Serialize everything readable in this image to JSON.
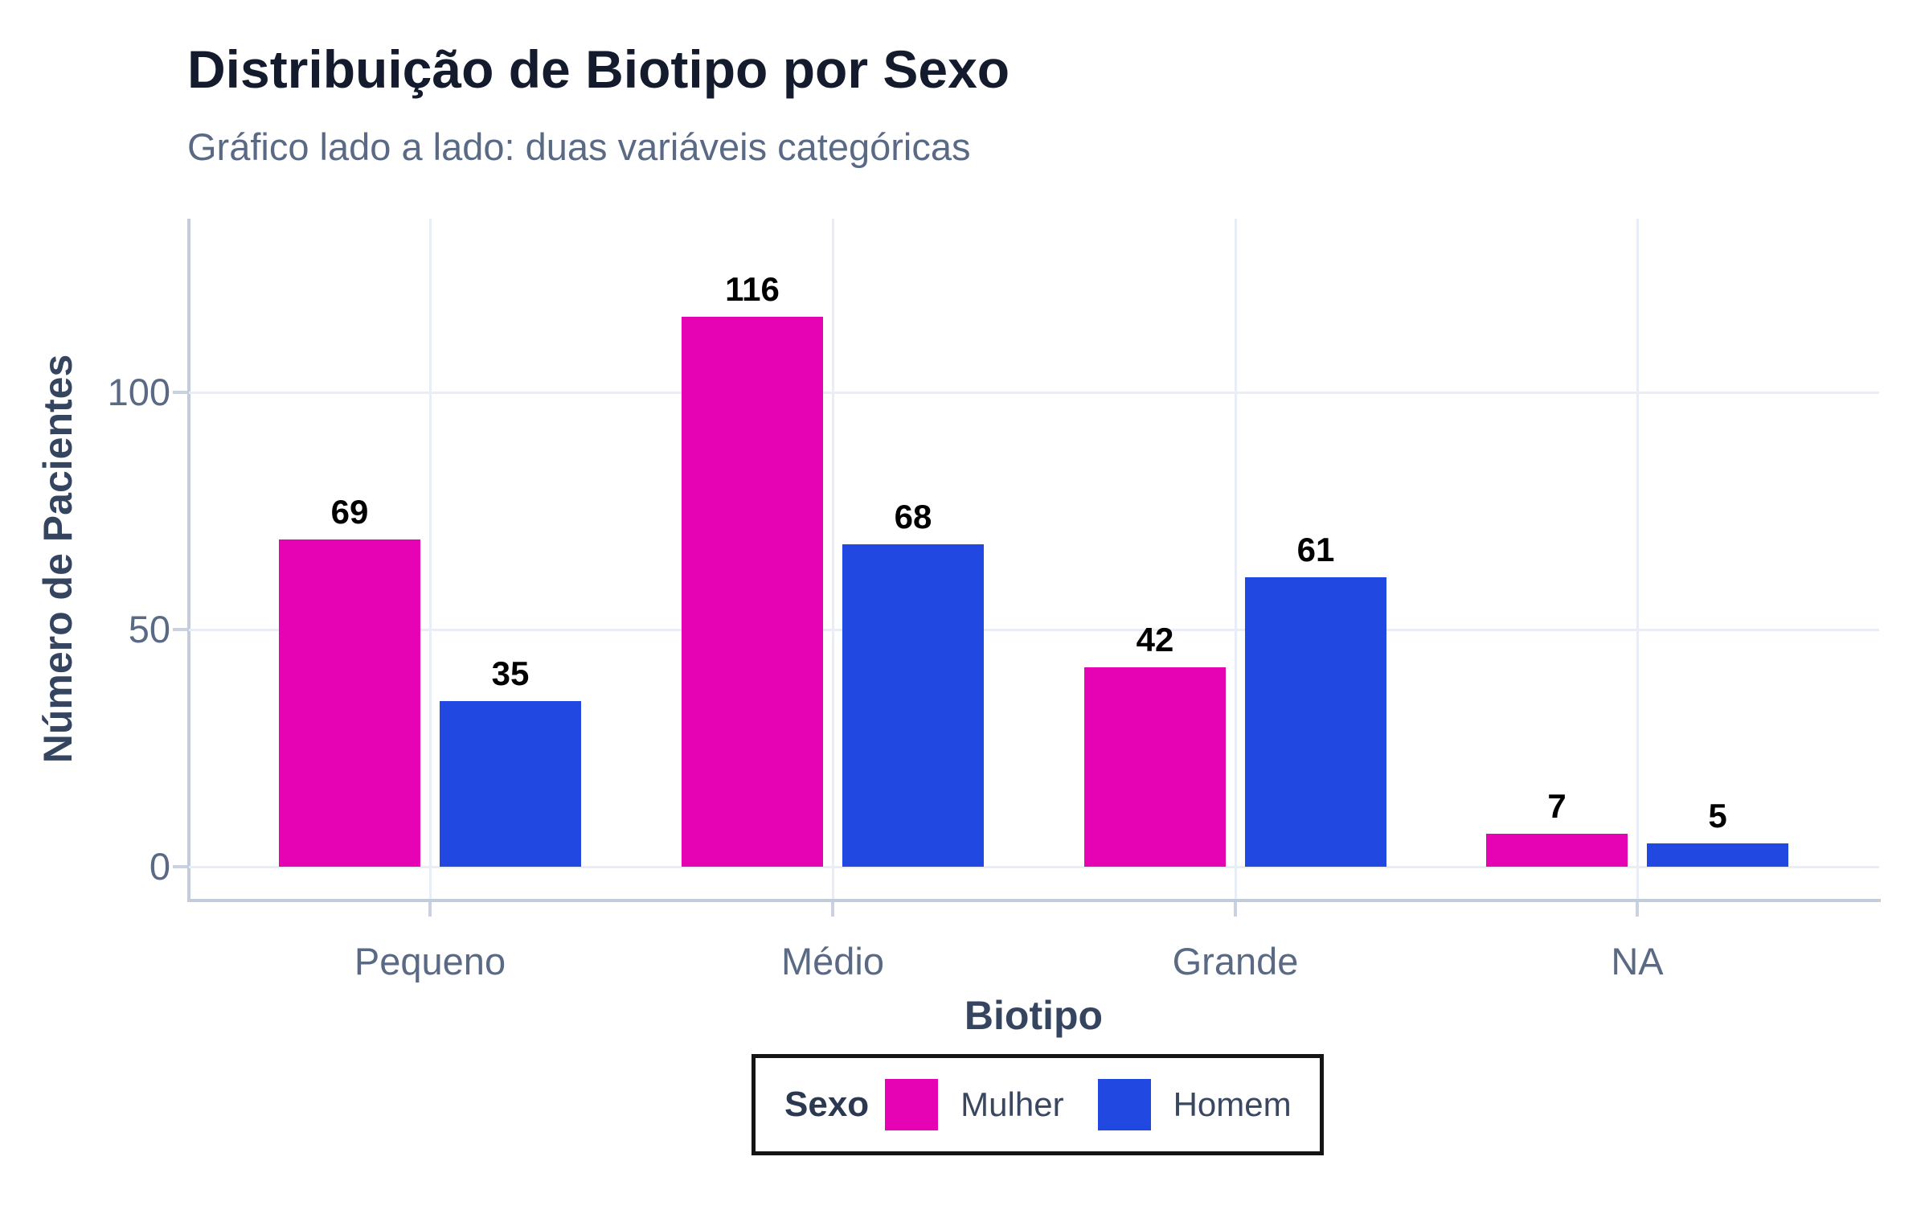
{
  "header": {
    "title": "Distribuição de Biotipo por Sexo",
    "subtitle": "Gráfico lado a lado: duas variáveis categóricas"
  },
  "chart_data": {
    "type": "bar",
    "orientation": "vertical-grouped",
    "categories": [
      "Pequeno",
      "Médio",
      "Grande",
      "NA"
    ],
    "series": [
      {
        "name": "Mulher",
        "color": "#E503B4",
        "values": [
          69,
          116,
          42,
          7
        ]
      },
      {
        "name": "Homem",
        "color": "#2148E0",
        "values": [
          35,
          68,
          61,
          5
        ]
      }
    ],
    "title": "Distribuição de Biotipo por Sexo",
    "subtitle": "Gráfico lado a lado: duas variáveis categóricas",
    "xlabel": "Biotipo",
    "ylabel": "Número de Pacientes",
    "y_ticks": [
      0,
      50,
      100
    ],
    "y_tick_labels": [
      "0",
      "50",
      "100"
    ],
    "ylim": [
      0,
      137
    ],
    "grid": "on",
    "bar_value_labels": true,
    "legend_title": "Sexo",
    "legend_position": "bottom",
    "legend_entries": [
      "Mulher",
      "Homem"
    ]
  },
  "style_colors": {
    "bar_mulher": "#E503B4",
    "bar_homem": "#2148E0",
    "title_text": "#131B2C",
    "subtitle_text": "#5A6A85",
    "axis_text": "#5A6A85",
    "axis_title_text": "#36455F",
    "gridline": "#E9EDF5",
    "axis_line": "#C3CCDB",
    "value_label": "#000000",
    "legend_border": "#141414"
  }
}
